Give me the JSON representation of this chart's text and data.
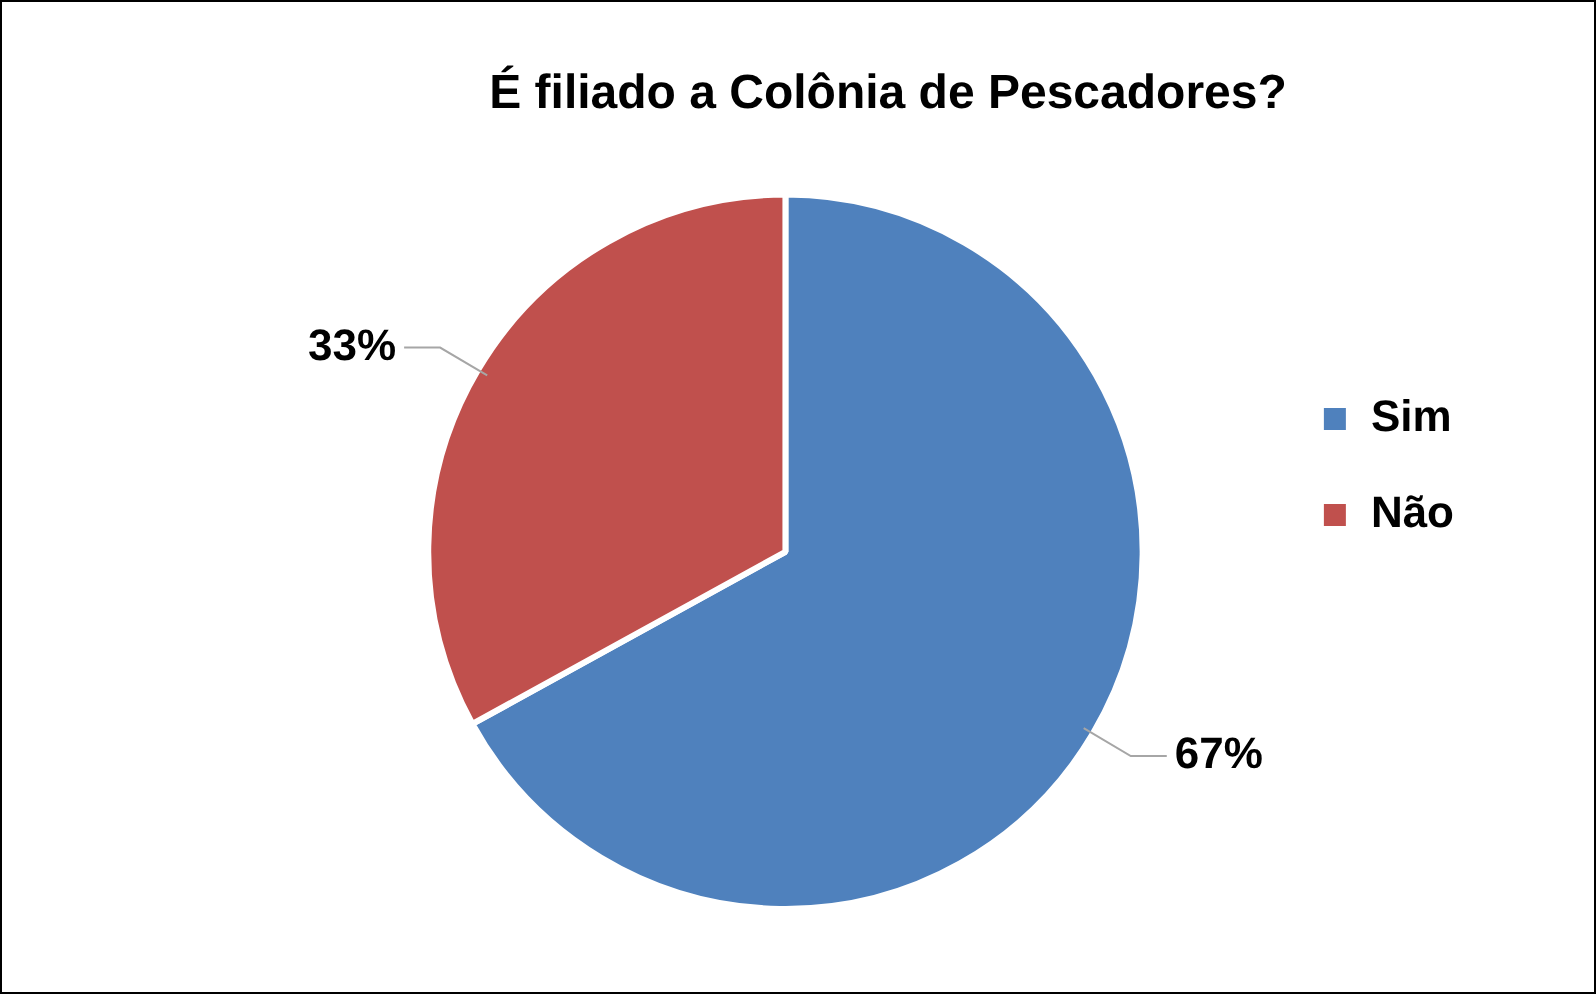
{
  "chart_data": {
    "type": "pie",
    "title": "É filiado a Colônia de Pescadores?",
    "categories": [
      "Sim",
      "Não"
    ],
    "values": [
      67,
      33
    ],
    "colors": [
      "#4f81bd",
      "#c0504d"
    ],
    "value_labels": [
      "67%",
      "33%"
    ],
    "legend": "right"
  }
}
